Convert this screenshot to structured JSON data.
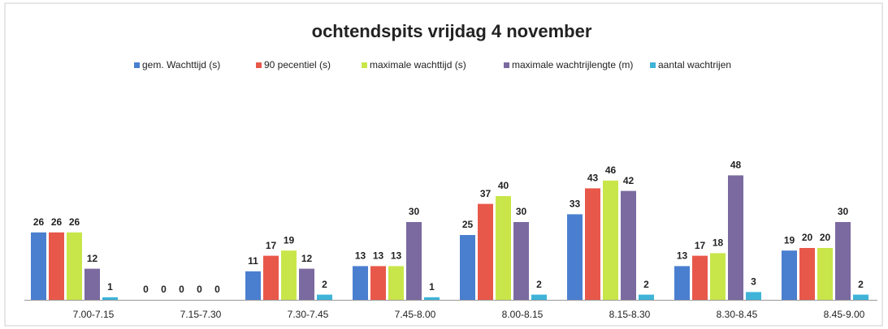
{
  "chart_data": {
    "type": "bar",
    "title": "ochtendspits vrijdag 4 november",
    "categories": [
      "7.00-7.15",
      "7.15-7.30",
      "7.30-7.45",
      "7.45-8.00",
      "8.00-8.15",
      "8.15-8.30",
      "8.30-8.45",
      "8.45-9.00"
    ],
    "series": [
      {
        "name": "gem. Wachttijd (s)",
        "color": "#4a7fd0",
        "values": [
          26,
          0,
          11,
          13,
          25,
          33,
          13,
          19
        ]
      },
      {
        "name": "90 pecentiel (s)",
        "color": "#e8584a",
        "values": [
          26,
          0,
          17,
          13,
          37,
          43,
          17,
          20
        ]
      },
      {
        "name": "maximale wachttijd (s)",
        "color": "#c8e64a",
        "values": [
          26,
          0,
          19,
          13,
          40,
          46,
          18,
          20
        ]
      },
      {
        "name": "maximale wachtrijlengte (m)",
        "color": "#7b6aa0",
        "values": [
          12,
          0,
          12,
          30,
          30,
          42,
          48,
          30
        ]
      },
      {
        "name": "aantal wachtrijen",
        "color": "#3fb3d8",
        "values": [
          1,
          0,
          2,
          1,
          2,
          2,
          3,
          2
        ]
      }
    ],
    "legend": "top"
  }
}
